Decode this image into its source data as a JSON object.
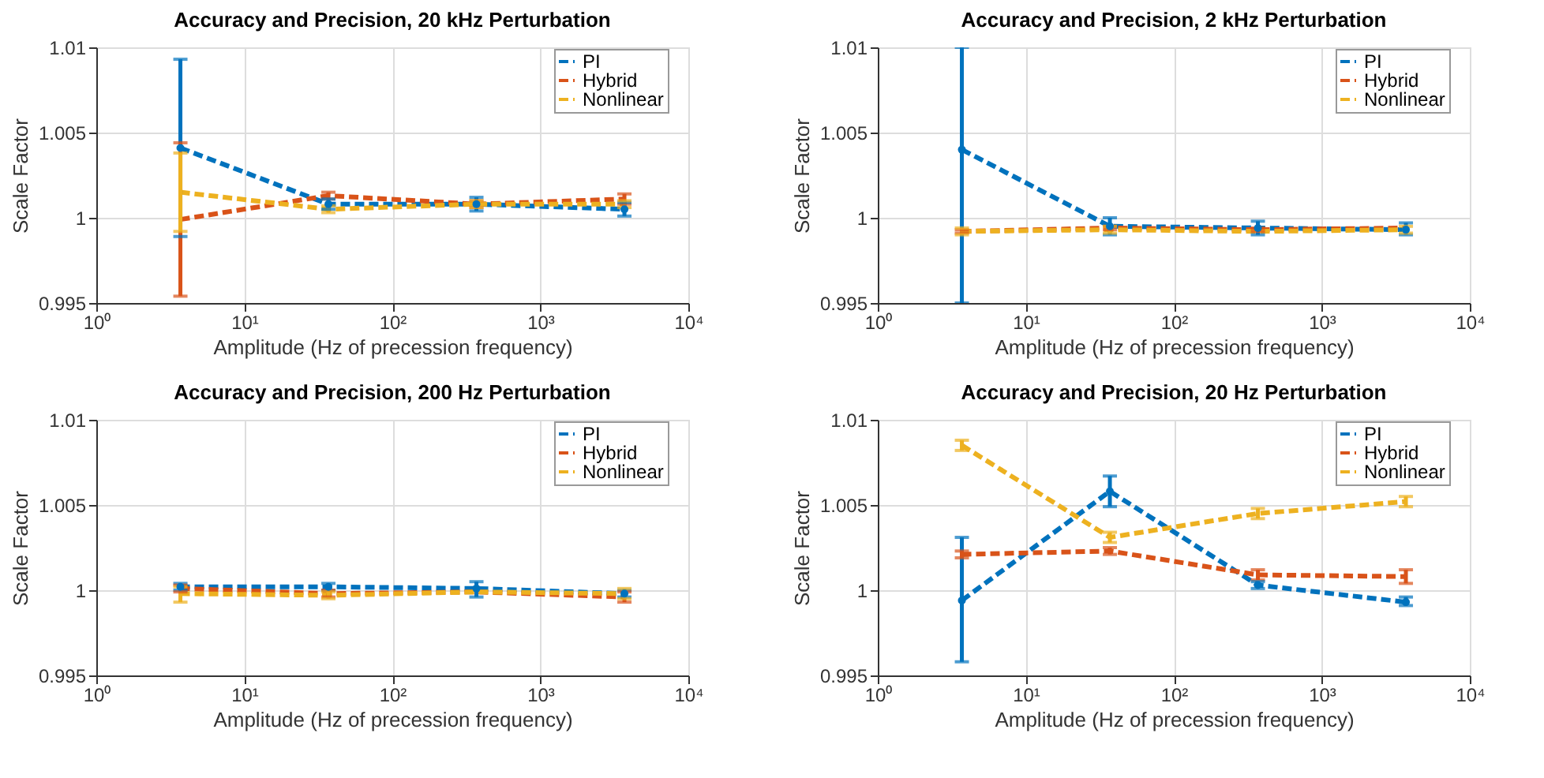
{
  "chart_data": [
    {
      "type": "line",
      "title": "Accuracy and Precision, 20 kHz Perturbation",
      "xlabel": "Amplitude (Hz of precession frequency)",
      "ylabel": "Scale Factor",
      "x": [
        3.7,
        37,
        370,
        3700
      ],
      "xlim": [
        1,
        10000
      ],
      "xticks": [
        {
          "value": 1,
          "label": "10⁰"
        },
        {
          "value": 10,
          "label": "10¹"
        },
        {
          "value": 100,
          "label": "10²"
        },
        {
          "value": 1000,
          "label": "10³"
        },
        {
          "value": 10000,
          "label": "10⁴"
        }
      ],
      "ylim": [
        0.995,
        1.01
      ],
      "yticks": [
        0.995,
        1,
        1.005,
        1.01
      ],
      "log": "x",
      "grid": true,
      "legend": "top right",
      "line_style": "dashed",
      "series": [
        {
          "name": "PI",
          "color": "#0072bd",
          "marker": "circle",
          "values": [
            1.0041,
            1.0008,
            1.0008,
            1.0005
          ],
          "errors": [
            [
              0.9989,
              1.0093
            ],
            [
              1.0005,
              1.0011
            ],
            [
              1.0004,
              1.0012
            ],
            [
              1.0001,
              1.0009
            ]
          ]
        },
        {
          "name": "Hybrid",
          "color": "#d95319",
          "values": [
            0.9999,
            1.0013,
            1.0008,
            1.0011
          ],
          "errors": [
            [
              0.9954,
              1.0044
            ],
            [
              1.0011,
              1.0015
            ],
            [
              1.0006,
              1.001
            ],
            [
              1.0008,
              1.0014
            ]
          ]
        },
        {
          "name": "Nonlinear",
          "color": "#edb120",
          "values": [
            1.0015,
            1.0005,
            1.0008,
            1.0008
          ],
          "errors": [
            [
              0.9992,
              1.0038
            ],
            [
              1.0003,
              1.0007
            ],
            [
              1.0006,
              1.001
            ],
            [
              1.0006,
              1.001
            ]
          ]
        }
      ]
    },
    {
      "type": "line",
      "title": "Accuracy and Precision, 2 kHz Perturbation",
      "xlabel": "Amplitude (Hz of precession frequency)",
      "ylabel": "Scale Factor",
      "x": [
        3.7,
        37,
        370,
        3700
      ],
      "xlim": [
        1,
        10000
      ],
      "xticks": [
        {
          "value": 1,
          "label": "10⁰"
        },
        {
          "value": 10,
          "label": "10¹"
        },
        {
          "value": 100,
          "label": "10²"
        },
        {
          "value": 1000,
          "label": "10³"
        },
        {
          "value": 10000,
          "label": "10⁴"
        }
      ],
      "ylim": [
        0.995,
        1.01
      ],
      "yticks": [
        0.995,
        1,
        1.005,
        1.01
      ],
      "log": "x",
      "grid": true,
      "legend": "top right",
      "line_style": "dashed",
      "series": [
        {
          "name": "PI",
          "color": "#0072bd",
          "marker": "circle",
          "values": [
            1.004,
            0.9995,
            0.9994,
            0.9993
          ],
          "errors": [
            [
              0.995,
              1.01
            ],
            [
              0.999,
              1.0
            ],
            [
              0.999,
              0.9998
            ],
            [
              0.999,
              0.9997
            ]
          ]
        },
        {
          "name": "Hybrid",
          "color": "#d95319",
          "values": [
            0.9992,
            0.9994,
            0.9993,
            0.9994
          ],
          "errors": [
            [
              0.9991,
              0.9993
            ],
            [
              0.9993,
              0.9995
            ],
            [
              0.9992,
              0.9994
            ],
            null
          ]
        },
        {
          "name": "Nonlinear",
          "color": "#edb120",
          "values": [
            0.9992,
            0.9993,
            0.9992,
            0.9993
          ],
          "errors": [
            [
              0.999,
              0.9994
            ],
            [
              0.9991,
              0.9995
            ],
            null,
            [
              0.9991,
              0.9995
            ]
          ]
        }
      ]
    },
    {
      "type": "line",
      "title": "Accuracy and Precision, 200 Hz Perturbation",
      "xlabel": "Amplitude (Hz of precession frequency)",
      "ylabel": "Scale Factor",
      "x": [
        3.7,
        37,
        370,
        3700
      ],
      "xlim": [
        1,
        10000
      ],
      "xticks": [
        {
          "value": 1,
          "label": "10⁰"
        },
        {
          "value": 10,
          "label": "10¹"
        },
        {
          "value": 100,
          "label": "10²"
        },
        {
          "value": 1000,
          "label": "10³"
        },
        {
          "value": 10000,
          "label": "10⁴"
        }
      ],
      "ylim": [
        0.995,
        1.01
      ],
      "yticks": [
        0.995,
        1,
        1.005,
        1.01
      ],
      "log": "x",
      "grid": true,
      "legend": "top right",
      "line_style": "dashed",
      "series": [
        {
          "name": "PI",
          "color": "#0072bd",
          "marker": "circle",
          "values": [
            1.0002,
            1.0002,
            1.0001,
            0.9998
          ],
          "errors": [
            [
              1.0,
              1.0004
            ],
            [
              1.0,
              1.0004
            ],
            [
              0.9996,
              1.0005
            ],
            [
              0.9996,
              1.0
            ]
          ]
        },
        {
          "name": "Hybrid",
          "color": "#d95319",
          "values": [
            1.0001,
            0.9998,
            0.9999,
            0.9996
          ],
          "errors": [
            [
              0.9999,
              1.0003
            ],
            [
              0.9996,
              1.0
            ],
            null,
            [
              0.9993,
              0.9999
            ]
          ]
        },
        {
          "name": "Nonlinear",
          "color": "#edb120",
          "values": [
            0.9998,
            0.9997,
            0.9999,
            0.9998
          ],
          "errors": [
            [
              0.9993,
              1.0002
            ],
            [
              0.9995,
              0.9999
            ],
            null,
            [
              0.9995,
              1.0001
            ]
          ]
        }
      ]
    },
    {
      "type": "line",
      "title": "Accuracy and Precision, 20 Hz Perturbation",
      "xlabel": "Amplitude (Hz of precession frequency)",
      "ylabel": "Scale Factor",
      "x": [
        3.7,
        37,
        370,
        3700
      ],
      "xlim": [
        1,
        10000
      ],
      "xticks": [
        {
          "value": 1,
          "label": "10⁰"
        },
        {
          "value": 10,
          "label": "10¹"
        },
        {
          "value": 100,
          "label": "10²"
        },
        {
          "value": 1000,
          "label": "10³"
        },
        {
          "value": 10000,
          "label": "10⁴"
        }
      ],
      "ylim": [
        0.995,
        1.01
      ],
      "yticks": [
        0.995,
        1,
        1.005,
        1.01
      ],
      "log": "x",
      "grid": true,
      "legend": "top right",
      "line_style": "dashed",
      "series": [
        {
          "name": "PI",
          "color": "#0072bd",
          "marker": "circle",
          "values": [
            0.9994,
            1.0058,
            1.0003,
            0.9993
          ],
          "errors": [
            [
              0.9958,
              1.0031
            ],
            [
              1.0049,
              1.0067
            ],
            [
              1.0001,
              1.0005
            ],
            [
              0.9991,
              0.9996
            ]
          ]
        },
        {
          "name": "Hybrid",
          "color": "#d95319",
          "values": [
            1.0021,
            1.0023,
            1.0009,
            1.0008
          ],
          "errors": [
            [
              1.0019,
              1.0023
            ],
            [
              1.0021,
              1.0025
            ],
            [
              1.0006,
              1.0012
            ],
            [
              1.0004,
              1.0012
            ]
          ]
        },
        {
          "name": "Nonlinear",
          "color": "#edb120",
          "values": [
            1.0085,
            1.0031,
            1.0045,
            1.0052
          ],
          "errors": [
            [
              1.0082,
              1.0088
            ],
            [
              1.0028,
              1.0034
            ],
            [
              1.0042,
              1.0048
            ],
            [
              1.0049,
              1.0055
            ]
          ]
        }
      ]
    }
  ]
}
